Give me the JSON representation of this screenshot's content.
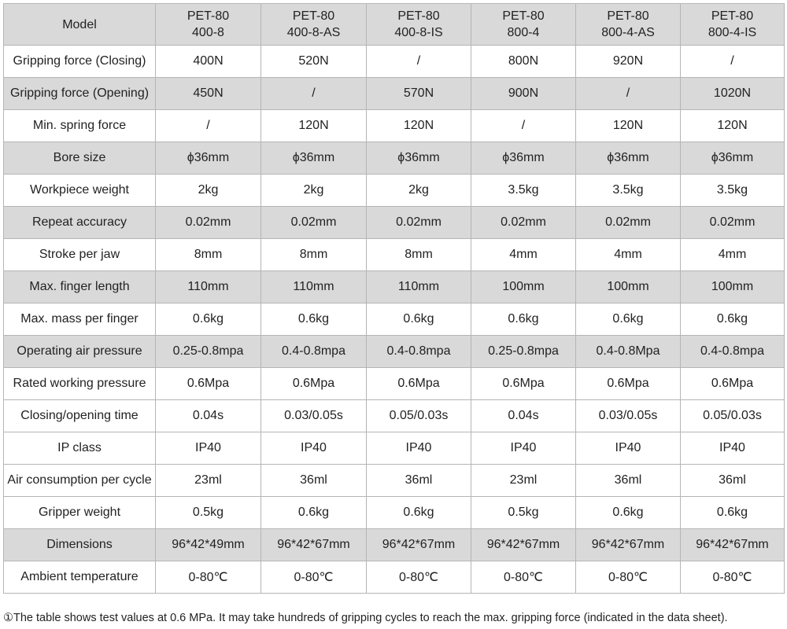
{
  "table": {
    "header": [
      "Model",
      [
        "PET-80",
        "400-8"
      ],
      [
        "PET-80",
        "400-8-AS"
      ],
      [
        "PET-80",
        "400-8-IS"
      ],
      [
        "PET-80",
        "800-4"
      ],
      [
        "PET-80",
        "800-4-AS"
      ],
      [
        "PET-80",
        "800-4-IS"
      ]
    ],
    "rows": [
      [
        "Gripping force (Closing)",
        "400N",
        "520N",
        "/",
        "800N",
        "920N",
        "/"
      ],
      [
        "Gripping force (Opening)",
        "450N",
        "/",
        "570N",
        "900N",
        "/",
        "1020N"
      ],
      [
        "Min. spring force",
        "/",
        "120N",
        "120N",
        "/",
        "120N",
        "120N"
      ],
      [
        "Bore size",
        "ϕ36mm",
        "ϕ36mm",
        "ϕ36mm",
        "ϕ36mm",
        "ϕ36mm",
        "ϕ36mm"
      ],
      [
        "Workpiece weight",
        "2kg",
        "2kg",
        "2kg",
        "3.5kg",
        "3.5kg",
        "3.5kg"
      ],
      [
        "Repeat accuracy",
        "0.02mm",
        "0.02mm",
        "0.02mm",
        "0.02mm",
        "0.02mm",
        "0.02mm"
      ],
      [
        "Stroke per jaw",
        "8mm",
        "8mm",
        "8mm",
        "4mm",
        "4mm",
        "4mm"
      ],
      [
        "Max. finger length",
        "110mm",
        "110mm",
        "110mm",
        "100mm",
        "100mm",
        "100mm"
      ],
      [
        "Max. mass per finger",
        "0.6kg",
        "0.6kg",
        "0.6kg",
        "0.6kg",
        "0.6kg",
        "0.6kg"
      ],
      [
        "Operating air pressure",
        "0.25-0.8mpa",
        "0.4-0.8mpa",
        "0.4-0.8mpa",
        "0.25-0.8mpa",
        "0.4-0.8Mpa",
        "0.4-0.8mpa"
      ],
      [
        "Rated working pressure",
        "0.6Mpa",
        "0.6Mpa",
        "0.6Mpa",
        "0.6Mpa",
        "0.6Mpa",
        "0.6Mpa"
      ],
      [
        "Closing/opening time",
        "0.04s",
        "0.03/0.05s",
        "0.05/0.03s",
        "0.04s",
        "0.03/0.05s",
        "0.05/0.03s"
      ],
      [
        "IP class",
        "IP40",
        "IP40",
        "IP40",
        "IP40",
        "IP40",
        "IP40"
      ],
      [
        "Air consumption per cycle",
        "23ml",
        "36ml",
        "36ml",
        "23ml",
        "36ml",
        "36ml"
      ],
      [
        "Gripper weight",
        "0.5kg",
        "0.6kg",
        "0.6kg",
        "0.5kg",
        "0.6kg",
        "0.6kg"
      ],
      [
        "Dimensions",
        "96*42*49mm",
        "96*42*67mm",
        "96*42*67mm",
        "96*42*67mm",
        "96*42*67mm",
        "96*42*67mm"
      ],
      [
        "Ambient temperature",
        "0-80℃",
        "0-80℃",
        "0-80℃",
        "0-80℃",
        "0-80℃",
        "0-80℃"
      ]
    ]
  },
  "footnote": "①The table shows test values at 0.6 MPa. It may take hundreds of gripping cycles to reach the max. gripping force (indicated in the data sheet)."
}
